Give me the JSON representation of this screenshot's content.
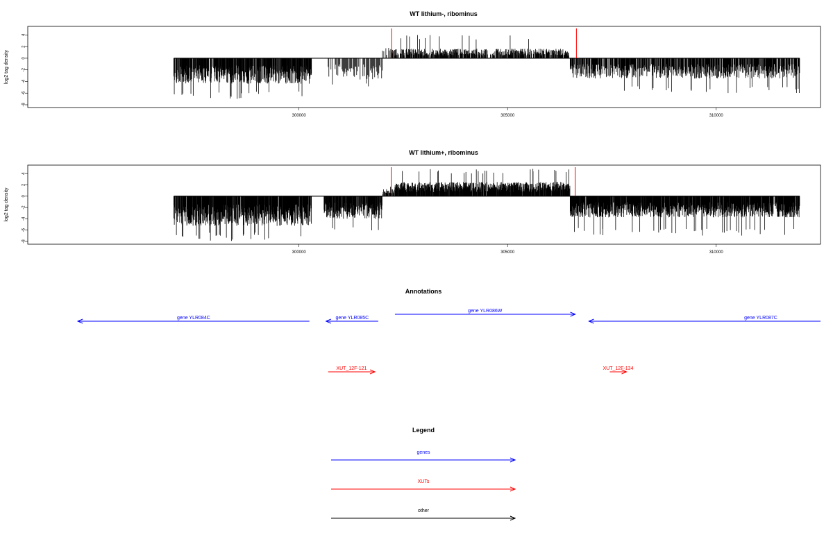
{
  "colors": {
    "genes": "#0000ff",
    "xuts": "#ff0000",
    "other": "#000000",
    "signal": "#000000",
    "highlight": "#ff0000"
  },
  "chart_data": [
    {
      "type": "bar",
      "title": "WT lithium-, ribominus",
      "ylabel": "log2 tag density",
      "xlim": [
        293500,
        312500
      ],
      "ylim": [
        -8,
        5
      ],
      "xticks": [
        300000,
        305000,
        310000
      ],
      "yticks": [
        4,
        2,
        0,
        -2,
        -4,
        -6,
        -8
      ],
      "signal_range": [
        297000,
        312000
      ],
      "profile": [
        {
          "from": 297000,
          "to": 300300,
          "sign": -1,
          "typical": 3.5,
          "max": 7.0,
          "density": 3
        },
        {
          "from": 300700,
          "to": 302000,
          "sign": -1,
          "typical": 3.0,
          "max": 5.0,
          "density": 1
        },
        {
          "from": 302000,
          "to": 302200,
          "sign": 1,
          "typical": 1.5,
          "max": 2.5,
          "density": 1
        },
        {
          "from": 302200,
          "to": 306500,
          "sign": 1,
          "typical": 1.3,
          "max": 4.0,
          "density": 2
        },
        {
          "from": 306500,
          "to": 312000,
          "sign": -1,
          "typical": 2.8,
          "max": 6.0,
          "density": 2
        }
      ],
      "highlights": [
        {
          "x": 302220,
          "value": 5
        },
        {
          "x": 306650,
          "value": 5
        }
      ]
    },
    {
      "type": "bar",
      "title": "WT lithium+, ribominus",
      "ylabel": "log2 tag density",
      "xlim": [
        293500,
        312500
      ],
      "ylim": [
        -8,
        5
      ],
      "xticks": [
        300000,
        305000,
        310000
      ],
      "yticks": [
        4,
        2,
        0,
        -2,
        -4,
        -6,
        -8
      ],
      "signal_range": [
        297000,
        312000
      ],
      "profile": [
        {
          "from": 297000,
          "to": 300300,
          "sign": -1,
          "typical": 4.2,
          "max": 8.0,
          "density": 4
        },
        {
          "from": 300600,
          "to": 302000,
          "sign": -1,
          "typical": 3.2,
          "max": 6.5,
          "density": 3
        },
        {
          "from": 302000,
          "to": 302300,
          "sign": 1,
          "typical": 1.0,
          "max": 2.0,
          "density": 2
        },
        {
          "from": 302300,
          "to": 306500,
          "sign": 1,
          "typical": 2.0,
          "max": 5.0,
          "density": 4
        },
        {
          "from": 306500,
          "to": 312000,
          "sign": -1,
          "typical": 3.0,
          "max": 7.0,
          "density": 4
        }
      ],
      "highlights": [
        {
          "x": 302210,
          "value": 5
        },
        {
          "x": 306620,
          "value": 5
        }
      ]
    }
  ],
  "annotations": {
    "title": "Annotations",
    "genes": [
      {
        "label": "gene YLR084C",
        "start": 300250,
        "end": 294700,
        "strand": "-"
      },
      {
        "label": "gene YLR085C",
        "start": 301900,
        "end": 300650,
        "strand": "-"
      },
      {
        "label": "gene YLR086W",
        "start": 302300,
        "end": 306620,
        "strand": "+"
      },
      {
        "label": "gene YLR087C",
        "start": 312500,
        "end": 306950,
        "strand": "-"
      }
    ],
    "xuts": [
      {
        "label": "XUT_12F-121",
        "start": 300700,
        "end": 301820,
        "strand": "+"
      },
      {
        "label": "XUT_12F-134",
        "start": 307450,
        "end": 307850,
        "strand": "+"
      }
    ]
  },
  "legend": {
    "title": "Legend",
    "items": [
      {
        "label": "genes",
        "color_key": "genes"
      },
      {
        "label": "XUTs",
        "color_key": "xuts"
      },
      {
        "label": "other",
        "color_key": "other"
      }
    ]
  }
}
